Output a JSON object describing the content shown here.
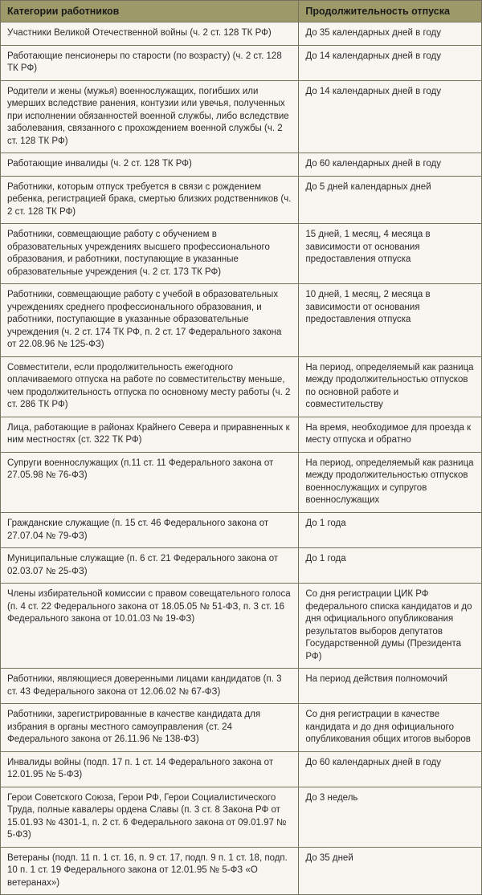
{
  "table": {
    "headers": {
      "category": "Категории работников",
      "duration": "Продолжительность отпуска"
    },
    "rows": [
      {
        "category": "Участники Великой Отечественной войны (ч. 2 ст. 128 ТК РФ)",
        "duration": "До 35 календарных дней в году"
      },
      {
        "category": "Работающие пенсионеры по старости (по возрасту) (ч. 2 ст. 128 ТК РФ)",
        "duration": "До 14 календарных дней в году"
      },
      {
        "category": "Родители и жены (мужья) военнослужащих, погибших или умерших вследствие ранения, контузии или увечья, полученных при исполнении обязанностей военной службы, либо вследствие заболевания, связанного с прохождением военной службы (ч. 2 ст. 128 ТК РФ)",
        "duration": "До 14 календарных дней в году"
      },
      {
        "category": "Работающие инвалиды (ч. 2 ст. 128 ТК РФ)",
        "duration": "До 60 календарных дней в году"
      },
      {
        "category": "Работники, которым отпуск требуется в связи с рождением ребенка, регистрацией брака, смертью близких родственников (ч. 2 ст. 128 ТК РФ)",
        "duration": "До 5 дней календарных дней"
      },
      {
        "category": "Работники, совмещающие работу с обучением в образовательных учреждениях высшего профессионального образования, и работники, поступающие в указанные образовательные учреждения (ч. 2 ст. 173 ТК РФ)",
        "duration": "15 дней, 1 месяц, 4 месяца в зависимости от основания предоставления отпуска"
      },
      {
        "category": "Работники, совмещающие работу с учебой в образовательных учреждениях среднего профессионального образования, и работники, поступающие в указанные образовательные учреждения (ч. 2 ст. 174 ТК РФ, п. 2 ст. 17 Федерального закона от 22.08.96 № 125-ФЗ)",
        "duration": "10 дней, 1 месяц, 2 месяца в зависимости от основания предоставления отпуска"
      },
      {
        "category": "Совместители, если продолжительность ежегодного оплачиваемого отпуска на работе по совместительству меньше, чем продолжительность отпуска по основному месту работы (ч. 2 ст. 286 ТК РФ)",
        "duration": "На период, определяемый как разница между продолжительностью отпусков по основной работе и совместительству"
      },
      {
        "category": "Лица, работающие в районах Крайнего Севера и приравненных к ним местностях (ст. 322 ТК РФ)",
        "duration": "На время, необходимое для проезда к месту отпуска и обратно"
      },
      {
        "category": "Супруги военнослужащих (п.11 ст. 11 Федерального закона от 27.05.98 № 76-ФЗ)",
        "duration": "На период, определяемый как разница между продолжительностью отпусков военнослужащих и супругов военнослужащих"
      },
      {
        "category": "Гражданские служащие (п. 15 ст. 46 Федерального закона от 27.07.04 № 79-ФЗ)",
        "duration": "До 1 года"
      },
      {
        "category": "Муниципальные служащие (п. 6 ст. 21 Федерального закона от 02.03.07 № 25-ФЗ)",
        "duration": "До 1 года"
      },
      {
        "category": "Члены избирательной комиссии с правом совещательного голоса (п. 4 ст. 22 Федерального закона от 18.05.05 № 51-ФЗ, п. 3 ст. 16 Федерального закона от 10.01.03 № 19-ФЗ)",
        "duration": "Со дня регистрации ЦИК РФ федерального списка кандидатов и до дня официального опубликования результатов выборов депутатов Государственной думы (Президента РФ)"
      },
      {
        "category": "Работники, являющиеся доверенными лицами кандидатов (п. 3 ст. 43 Федерального закона от 12.06.02 № 67-ФЗ)",
        "duration": "На период действия полномочий"
      },
      {
        "category": "Работники, зарегистрированные в качестве кандидата для избрания в органы местного самоуправления (ст. 24 Федерального закона от 26.11.96 № 138-ФЗ)",
        "duration": "Со дня регистрации в качестве кандидата и до дня официального опубликования общих итогов выборов"
      },
      {
        "category": "Инвалиды войны (подп. 17 п. 1 ст. 14 Федерального закона от 12.01.95 № 5-ФЗ)",
        "duration": "До 60 календарных дней в году"
      },
      {
        "category": "Герои Советского Союза, Герои РФ, Герои Социалистического Труда, полные кавалеры ордена Славы (п. 3 ст. 8 Закона РФ от 15.01.93 № 4301-1, п. 2 ст. 6 Федерального закона от 09.01.97 № 5-ФЗ)",
        "duration": "До 3 недель"
      },
      {
        "category": "Ветераны (подп. 11 п. 1 ст. 16, п. 9 ст. 17, подп. 9 п. 1 ст. 18, подп. 10 п. 1 ст. 19 Федерального закона от 12.01.95 № 5-ФЗ «О ветеранах»)",
        "duration": "До 35 дней"
      }
    ]
  }
}
